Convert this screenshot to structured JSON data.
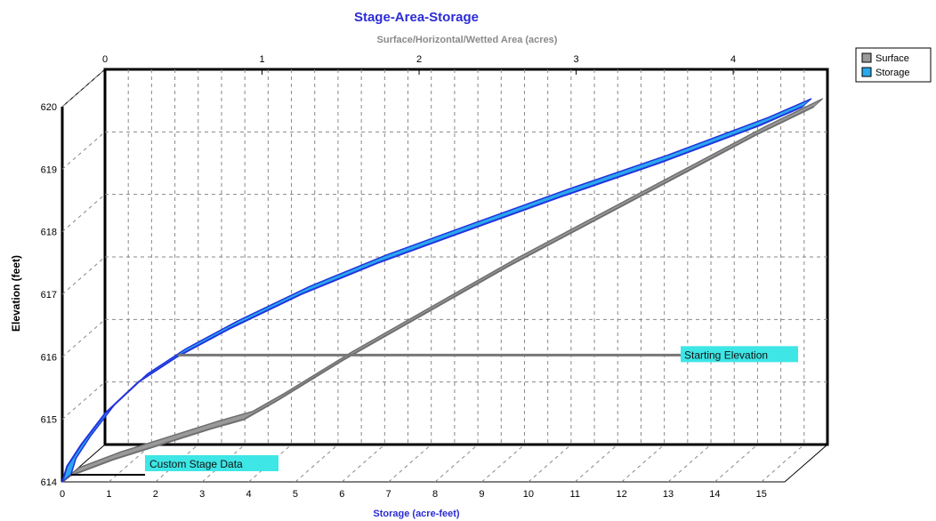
{
  "chart_data": {
    "type": "line",
    "title": "Stage-Area-Storage",
    "top_axis_label": "Surface/Horizontal/Wetted Area (acres)",
    "xlabel": "Storage (acre-feet)",
    "ylabel": "Elevation  (feet)",
    "bottom_axis": {
      "range": [
        0,
        15.5
      ],
      "ticks": [
        "0",
        "1",
        "2",
        "3",
        "4",
        "5",
        "6",
        "7",
        "8",
        "9",
        "10",
        "11",
        "12",
        "13",
        "14",
        "15"
      ]
    },
    "top_axis": {
      "range": [
        0,
        4.6
      ],
      "ticks": [
        "0",
        "1",
        "2",
        "3",
        "4"
      ]
    },
    "y_axis": {
      "range": [
        614,
        620
      ],
      "ticks": [
        "614",
        "615",
        "616",
        "617",
        "618",
        "619",
        "620"
      ]
    },
    "grid": true,
    "style": "3d",
    "legend": {
      "position": "top-right",
      "entries": [
        "Surface",
        "Storage"
      ]
    },
    "colors": {
      "surface": "#9a9a9a",
      "storage": "#2233dd",
      "storage_light": "#2aa8ee",
      "title": "#2b2bd6",
      "annotation_bg": "#3ee6e6"
    },
    "series": [
      {
        "name": "Surface",
        "axis": "top",
        "x": [
          0.0,
          0.05,
          0.3,
          0.6,
          0.9,
          1.1,
          1.3,
          1.7,
          2.2,
          2.7,
          3.2,
          3.7,
          4.2,
          4.55
        ],
        "y": [
          614.0,
          614.1,
          614.35,
          614.6,
          614.85,
          615.0,
          615.3,
          615.95,
          616.7,
          617.45,
          618.15,
          618.85,
          619.55,
          620.0
        ]
      },
      {
        "name": "Storage",
        "axis": "bottom",
        "x": [
          0.0,
          0.1,
          0.4,
          0.9,
          1.6,
          2.4,
          3.5,
          5.0,
          6.6,
          8.4,
          10.4,
          12.5,
          14.6,
          15.5
        ],
        "y": [
          614.0,
          614.25,
          614.6,
          615.1,
          615.6,
          616.0,
          616.45,
          617.0,
          617.5,
          618.0,
          618.55,
          619.1,
          619.7,
          620.0
        ]
      }
    ],
    "annotations": [
      {
        "text": "Starting Elevation",
        "elevation": 616.0
      },
      {
        "text": "Custom Stage Data",
        "elevation": 614.0
      }
    ]
  }
}
